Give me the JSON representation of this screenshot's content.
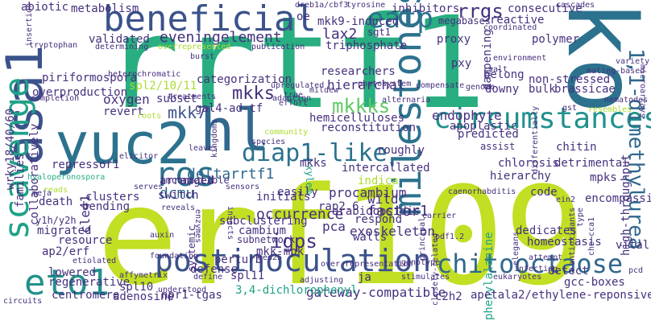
{
  "palette": {
    "dark_purple": "#46307e",
    "indigo": "#3b528b",
    "blue": "#31688e",
    "steel": "#2c728e",
    "teal": "#21918c",
    "sea": "#1fa188",
    "green": "#28ae80",
    "mint": "#5ec962",
    "lime": "#addc30",
    "yellow_green": "#c2df23",
    "purple": "#482878"
  },
  "words": [
    "rrtf1",
    "erf109",
    "ko",
    "asa1",
    "beneficial",
    "yuc2",
    "hl",
    "scavenge",
    "milestones",
    "circumstances",
    "postinoculation",
    "eto1",
    "ros",
    "diap1-like",
    "chitooctaose",
    "eatp",
    "rrgs",
    "1,1-dimethylurea",
    "mkkks",
    "mkks",
    "mkk7",
    "mkks",
    "eveningelement",
    "lax2",
    "deltarrtf1",
    "dcmu",
    "igps",
    "incompatible",
    "occurrence",
    "xylem",
    "cle41",
    "factor1",
    "procambium",
    "subclustering",
    "cambium",
    "subnetwork",
    "exoskeleton",
    "endophyte",
    "apoplastic",
    "hierarchal",
    "hemicelluloses",
    "reconstitution",
    "intercallated",
    "indica",
    "wild",
    "pca",
    "arabidopsidis",
    "respond",
    "rap2.6",
    "walls",
    "gateway-compatible",
    "3,4-dichlorophenyl",
    "npr1-tgas",
    "spl10",
    "adenosine",
    "centromere",
    "regenerative",
    "lowered",
    "ap2/erf",
    "migrated",
    "y1h/y2h",
    "death",
    "resource",
    "bending",
    "clusters",
    "initials",
    "arranged",
    "repressor1",
    "oxygen",
    "subset",
    "revert",
    "overproduction",
    "piriformospora",
    "validated",
    "categorization",
    "spl2/10/11",
    "gal4-ad-tf",
    "metabolism",
    "abiotic",
    "triphosphate",
    "proxy",
    "megabases",
    "mkk9-induced",
    "sgt1",
    "inhibitors",
    "consecutive",
    "reactive",
    "polymer",
    "dampening",
    "pxy",
    "belong",
    "downy",
    "non-stressed",
    "bulk",
    "brassicae",
    "chitin",
    "predicted",
    "assist",
    "chlorosis",
    "detrimental",
    "hierarchy",
    "mpks",
    "code",
    "encompassing",
    "high-throughput",
    "dedicates",
    "homeostasis",
    "vital",
    "phenylalanine",
    "detect",
    "gcc-boxes",
    "apetala2/ethylene-reponsive",
    "c2h2",
    "elegans",
    "caenorhabditis",
    "researchers",
    "roughly",
    "easily",
    "systemic",
    "perturb",
    "defense",
    "spl11",
    "mkk-mpk",
    "switch",
    "families",
    "collaboratively",
    "wrky18/40/60",
    "hyaloperonospora",
    "oe",
    "ja",
    "circuits",
    "affymetrix",
    "tryptophan",
    "heterochromatic",
    "leaves",
    "elicitor",
    "species",
    "community",
    "sensors",
    "auxin",
    "foundation",
    "etiolated",
    "enzymes",
    "insects",
    "over-representation",
    "understood",
    "med25",
    "genotype",
    "pdf1.2",
    "principal",
    "carrier",
    "infection",
    "eukaryotes",
    "stimulates",
    "closely-related",
    "pcd",
    "che-cca1",
    "type",
    "antioxidants",
    "ein2",
    "differentially",
    "gst",
    "resembles",
    "nematodes",
    "mating-based",
    "variety",
    "microarrays",
    "environment",
    "coordinated",
    "cascades",
    "salt",
    "compensate",
    "mildew",
    "genome",
    "alternaria",
    "photosystem",
    "upregulated",
    "true",
    "adaption",
    "effort",
    "treatments",
    "overrepresented",
    "determining",
    "publication",
    "burst",
    "kingdoms",
    "roots",
    "reads",
    "meja",
    "completion",
    "insertion",
    "dreb1a/cbf3",
    "tyrosine",
    "attempt",
    "serves",
    "define",
    "reveals",
    "adjusting",
    "hub",
    "ptfi",
    "sag",
    "pal"
  ]
}
